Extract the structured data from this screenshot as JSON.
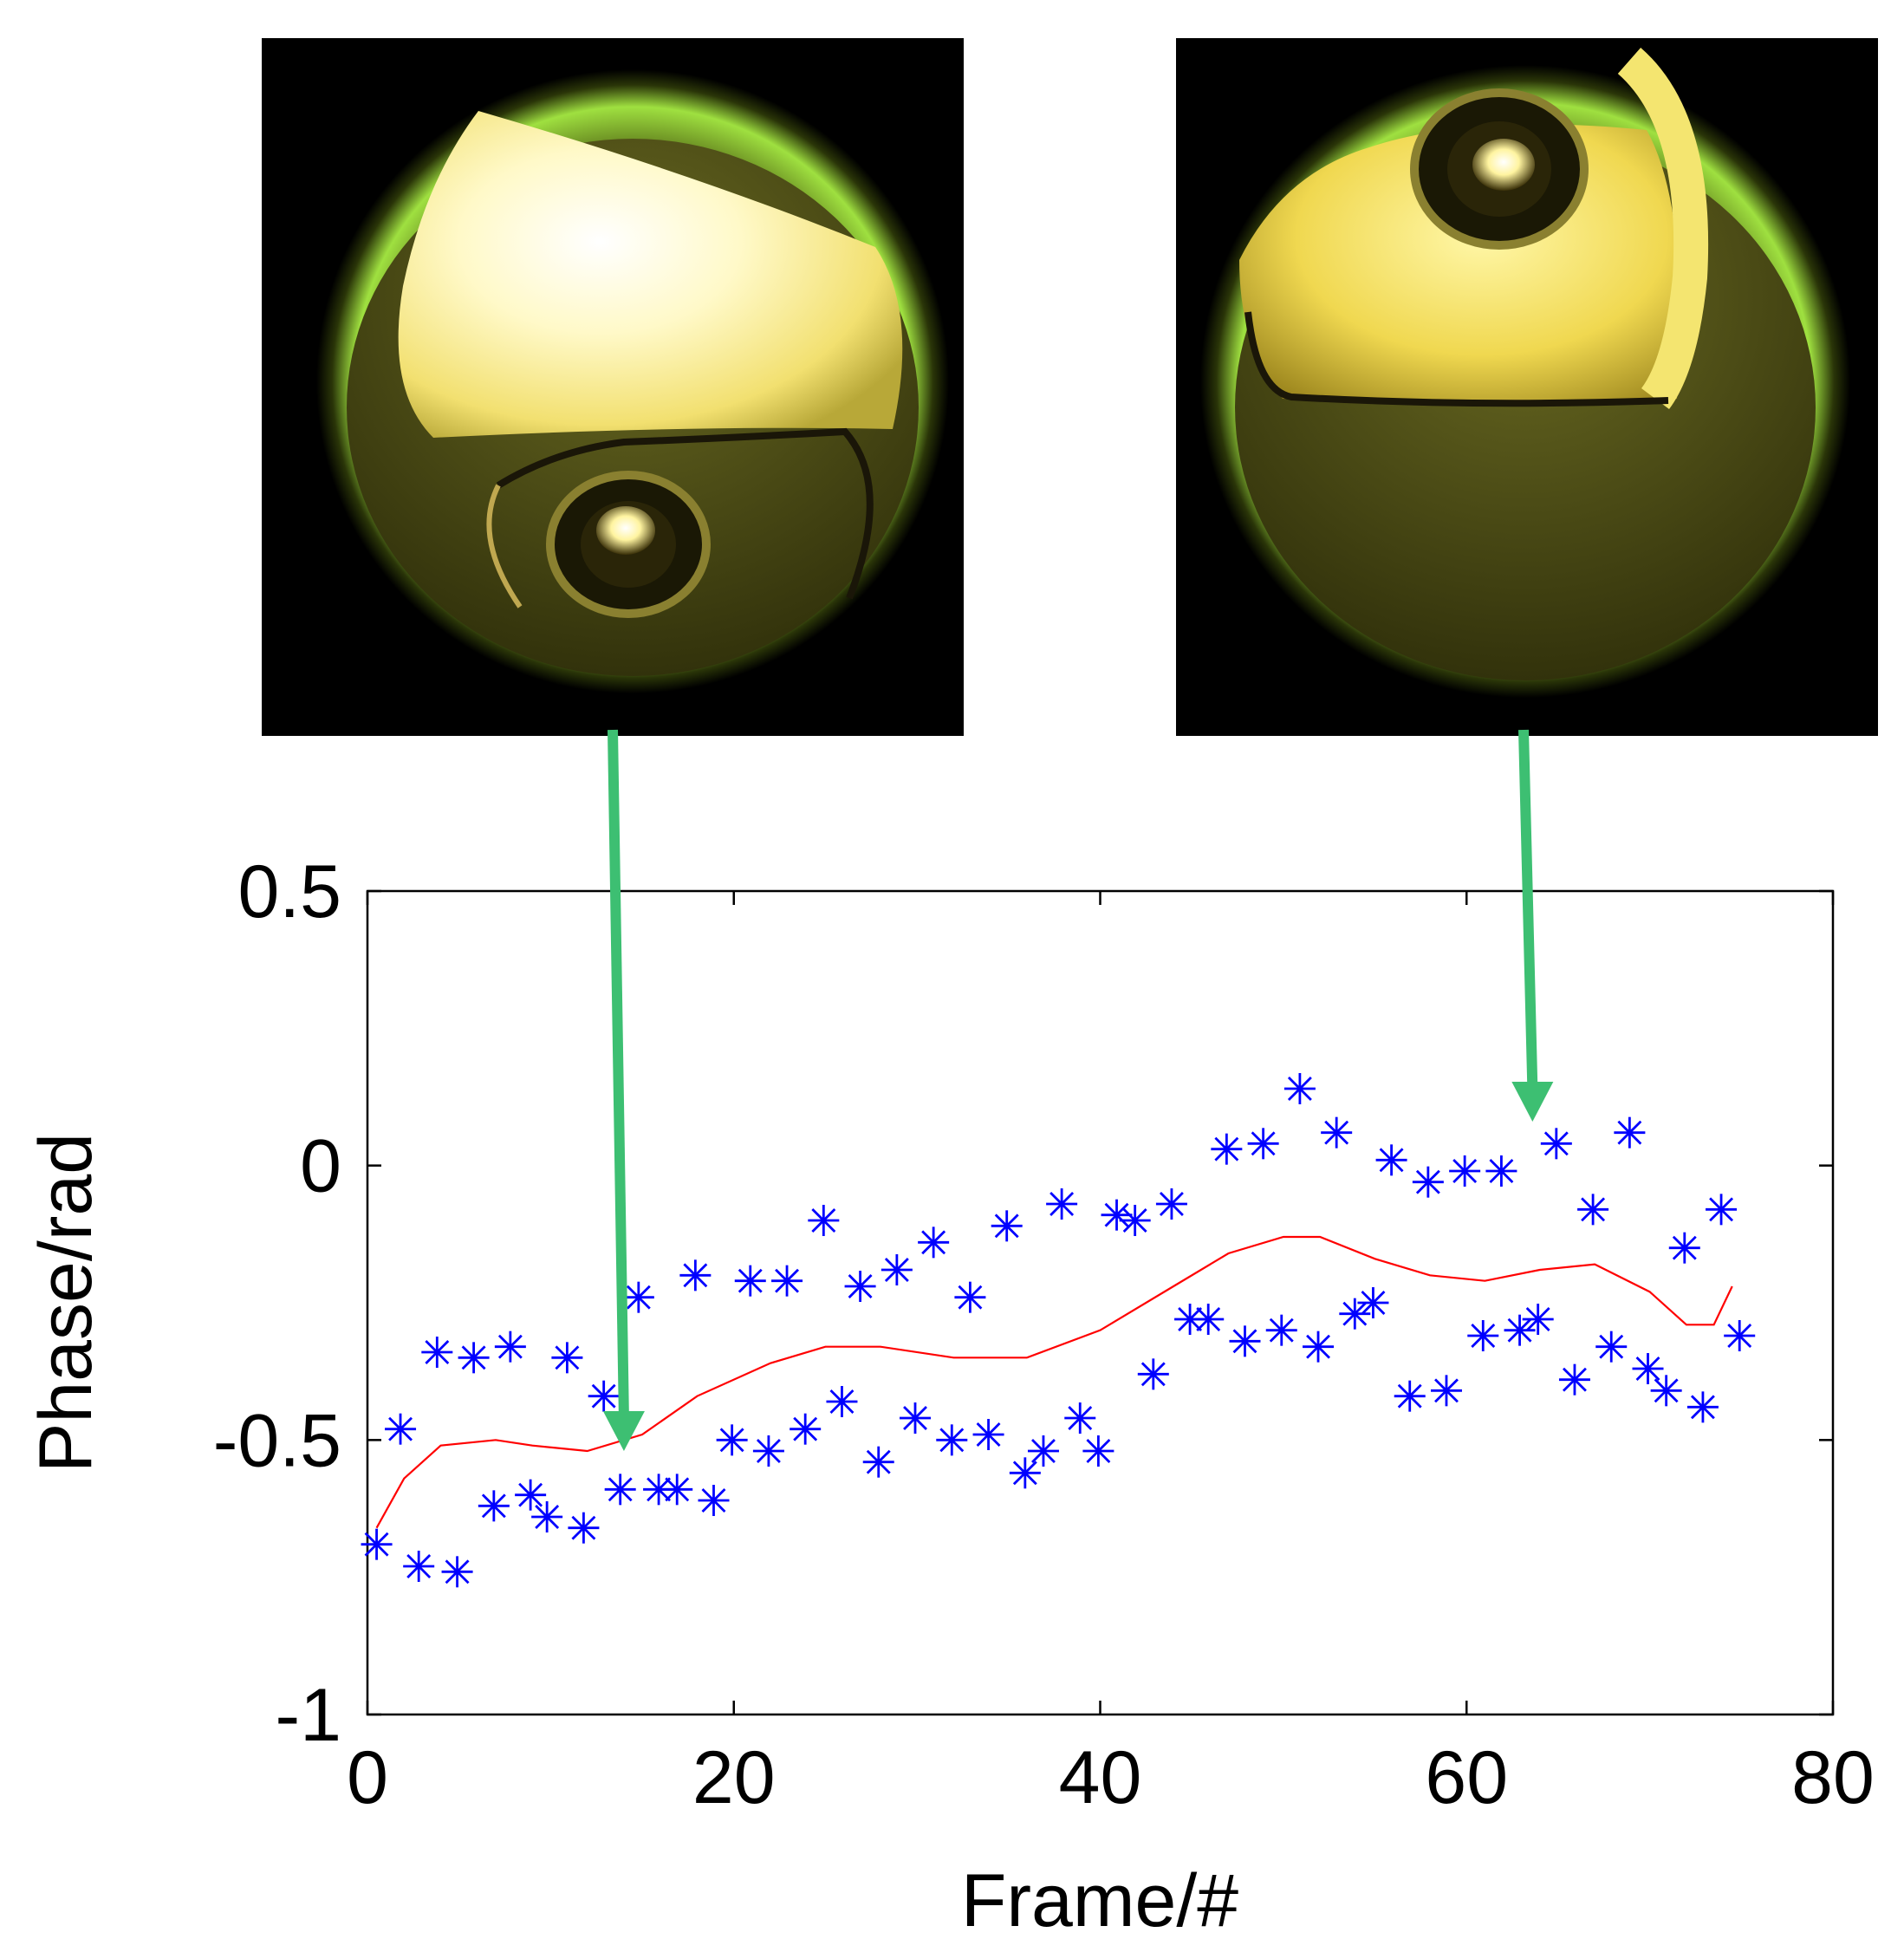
{
  "chart_data": {
    "type": "scatter",
    "title": "",
    "xlabel": "Frame/#",
    "ylabel": "Phase/rad",
    "xlim": [
      0,
      80
    ],
    "ylim": [
      -1,
      0.5
    ],
    "x_ticks": [
      0,
      20,
      40,
      60,
      80
    ],
    "x_tick_labels": [
      "0",
      "20",
      "40",
      "60",
      "80"
    ],
    "y_ticks": [
      -1,
      -0.5,
      0,
      0.5
    ],
    "y_tick_labels": [
      "-1",
      "-0.5",
      "0",
      "0.5"
    ],
    "grid": false,
    "series": [
      {
        "marker": "asterisk",
        "color": "#0000ff",
        "points": [
          [
            0.5,
            -0.69
          ],
          [
            1.8,
            -0.48
          ],
          [
            2.8,
            -0.73
          ],
          [
            3.8,
            -0.34
          ],
          [
            4.9,
            -0.74
          ],
          [
            5.8,
            -0.35
          ],
          [
            6.9,
            -0.62
          ],
          [
            7.8,
            -0.33
          ],
          [
            8.9,
            -0.6
          ],
          [
            9.8,
            -0.64
          ],
          [
            10.9,
            -0.35
          ],
          [
            11.8,
            -0.66
          ],
          [
            12.9,
            -0.42
          ],
          [
            13.8,
            -0.59
          ],
          [
            14.8,
            -0.24
          ],
          [
            15.9,
            -0.59
          ],
          [
            16.9,
            -0.59
          ],
          [
            17.9,
            -0.2
          ],
          [
            18.9,
            -0.61
          ],
          [
            19.9,
            -0.5
          ],
          [
            20.9,
            -0.21
          ],
          [
            21.9,
            -0.52
          ],
          [
            22.9,
            -0.21
          ],
          [
            23.9,
            -0.48
          ],
          [
            24.9,
            -0.1
          ],
          [
            25.9,
            -0.43
          ],
          [
            26.9,
            -0.22
          ],
          [
            27.9,
            -0.54
          ],
          [
            28.9,
            -0.19
          ],
          [
            29.9,
            -0.46
          ],
          [
            30.9,
            -0.14
          ],
          [
            31.9,
            -0.5
          ],
          [
            32.9,
            -0.24
          ],
          [
            33.9,
            -0.49
          ],
          [
            34.9,
            -0.11
          ],
          [
            35.9,
            -0.56
          ],
          [
            36.9,
            -0.52
          ],
          [
            37.9,
            -0.07
          ],
          [
            38.9,
            -0.46
          ],
          [
            39.9,
            -0.52
          ],
          [
            40.9,
            -0.09
          ],
          [
            41.9,
            -0.1
          ],
          [
            42.9,
            -0.38
          ],
          [
            43.9,
            -0.07
          ],
          [
            44.9,
            -0.28
          ],
          [
            45.9,
            -0.28
          ],
          [
            46.9,
            0.03
          ],
          [
            47.9,
            -0.32
          ],
          [
            48.9,
            0.04
          ],
          [
            49.9,
            -0.3
          ],
          [
            50.9,
            0.14
          ],
          [
            51.9,
            -0.33
          ],
          [
            52.9,
            0.06
          ],
          [
            53.9,
            -0.27
          ],
          [
            54.9,
            -0.25
          ],
          [
            55.9,
            0.01
          ],
          [
            56.9,
            -0.42
          ],
          [
            57.9,
            -0.03
          ],
          [
            58.9,
            -0.41
          ],
          [
            59.9,
            -0.01
          ],
          [
            60.9,
            -0.31
          ],
          [
            61.9,
            -0.01
          ],
          [
            62.9,
            -0.3
          ],
          [
            63.9,
            -0.28
          ],
          [
            64.9,
            0.04
          ],
          [
            65.9,
            -0.39
          ],
          [
            66.9,
            -0.08
          ],
          [
            67.9,
            -0.33
          ],
          [
            68.9,
            0.06
          ],
          [
            69.9,
            -0.37
          ],
          [
            70.9,
            -0.41
          ],
          [
            71.9,
            -0.15
          ],
          [
            72.9,
            -0.44
          ],
          [
            73.9,
            -0.08
          ],
          [
            74.9,
            -0.31
          ]
        ]
      },
      {
        "marker": "line",
        "color": "#ff0000",
        "points": [
          [
            0.5,
            -0.66
          ],
          [
            2,
            -0.57
          ],
          [
            4,
            -0.51
          ],
          [
            7,
            -0.5
          ],
          [
            9,
            -0.51
          ],
          [
            12,
            -0.52
          ],
          [
            15,
            -0.49
          ],
          [
            18,
            -0.42
          ],
          [
            22,
            -0.36
          ],
          [
            25,
            -0.33
          ],
          [
            28,
            -0.33
          ],
          [
            32,
            -0.35
          ],
          [
            36,
            -0.35
          ],
          [
            40,
            -0.3
          ],
          [
            44,
            -0.22
          ],
          [
            47,
            -0.16
          ],
          [
            50,
            -0.13
          ],
          [
            52,
            -0.13
          ],
          [
            55,
            -0.17
          ],
          [
            58,
            -0.2
          ],
          [
            61,
            -0.21
          ],
          [
            64,
            -0.19
          ],
          [
            67,
            -0.18
          ],
          [
            70,
            -0.23
          ],
          [
            72,
            -0.29
          ],
          [
            73.5,
            -0.29
          ],
          [
            74.5,
            -0.22
          ]
        ]
      }
    ]
  },
  "annotations": {
    "arrow_color": "#3dbf72",
    "arrows": [
      {
        "target_frame": 14.0,
        "target_phase": -0.52
      },
      {
        "target_frame": 63.6,
        "target_phase": 0.08
      }
    ]
  },
  "images": [
    {
      "icon": "bright-upper-half-bubble-image"
    },
    {
      "icon": "bright-upper-bubble-top-image"
    }
  ]
}
